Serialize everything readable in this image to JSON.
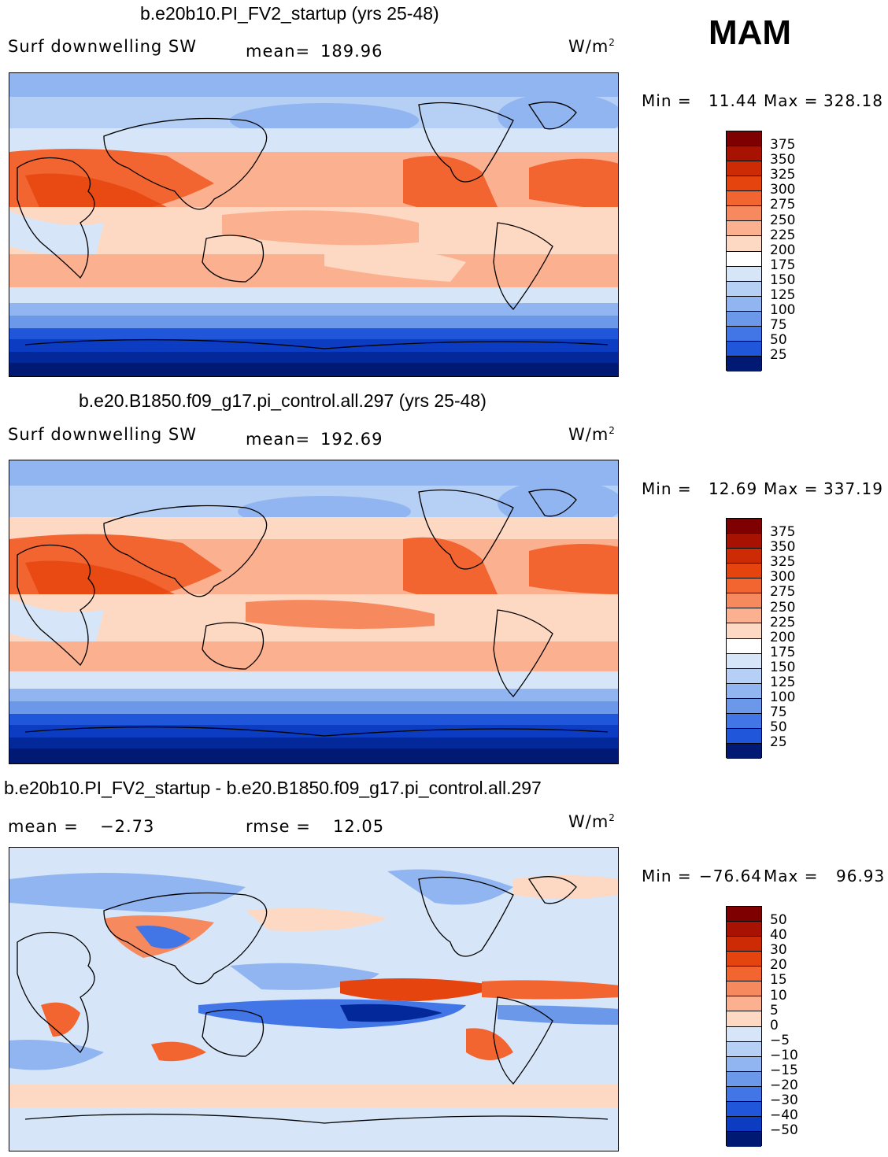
{
  "season": "MAM",
  "units_base": "W/m",
  "units_sup": "2",
  "panels": [
    {
      "title": "b.e20b10.PI_FV2_startup (yrs 25-48)",
      "left_label": "Surf downwelling SW",
      "stat_label": "mean=",
      "stat_value": "189.96",
      "min_label": "Min =",
      "min_value": "11.44",
      "max_label": "Max =",
      "max_value": "328.18",
      "colorbar": [
        "375",
        "350",
        "325",
        "300",
        "275",
        "250",
        "225",
        "200",
        "175",
        "150",
        "125",
        "100",
        "75",
        "50",
        "25"
      ],
      "colors": [
        "#7f0000",
        "#a81203",
        "#cc2b06",
        "#e6440e",
        "#f26430",
        "#f7895e",
        "#fbb08f",
        "#fdd8c3",
        "#ffffff",
        "#d6e6f8",
        "#b6d0f5",
        "#91b5f0",
        "#6c98ea",
        "#4276e6",
        "#1f56da",
        "#0b3cc2",
        "#022899",
        "#001a74"
      ]
    },
    {
      "title": "b.e20.B1850.f09_g17.pi_control.all.297 (yrs 25-48)",
      "left_label": "Surf downwelling SW",
      "stat_label": "mean=",
      "stat_value": "192.69",
      "min_label": "Min =",
      "min_value": "12.69",
      "max_label": "Max =",
      "max_value": "337.19",
      "colorbar": [
        "375",
        "350",
        "325",
        "300",
        "275",
        "250",
        "225",
        "200",
        "175",
        "150",
        "125",
        "100",
        "75",
        "50",
        "25"
      ]
    },
    {
      "title": "b.e20b10.PI_FV2_startup - b.e20.B1850.f09_g17.pi_control.all.297",
      "left_label": "mean =",
      "left_value": "−2.73",
      "stat_label": "rmse =",
      "stat_value": "12.05",
      "min_label": "Min =",
      "min_value": "−76.64",
      "max_label": "Max =",
      "max_value": "96.93",
      "colorbar": [
        "50",
        "40",
        "30",
        "20",
        "15",
        "10",
        "5",
        "0",
        "−5",
        "−10",
        "−15",
        "−20",
        "−30",
        "−40",
        "−50"
      ]
    }
  ]
}
